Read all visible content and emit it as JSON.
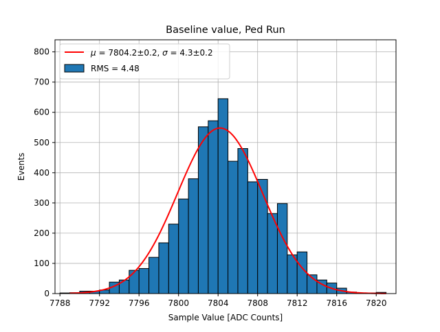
{
  "chart_data": {
    "type": "bar",
    "title": "Baseline value, Ped Run",
    "xlabel": "Sample Value [ADC Counts]",
    "ylabel": "Events",
    "xlim": [
      7787.5,
      7822.0
    ],
    "ylim": [
      0,
      840
    ],
    "x_ticks": [
      7788,
      7792,
      7796,
      7800,
      7804,
      7808,
      7812,
      7816,
      7820
    ],
    "y_ticks": [
      0,
      100,
      200,
      300,
      400,
      500,
      600,
      700,
      800
    ],
    "grid": true,
    "legend_position": "upper-left",
    "bin_width": 1,
    "bins": [
      {
        "x": 7788.5,
        "count": 2
      },
      {
        "x": 7789.5,
        "count": 3
      },
      {
        "x": 7790.5,
        "count": 8
      },
      {
        "x": 7791.5,
        "count": 8
      },
      {
        "x": 7792.5,
        "count": 12
      },
      {
        "x": 7793.5,
        "count": 38
      },
      {
        "x": 7794.5,
        "count": 45
      },
      {
        "x": 7795.5,
        "count": 77
      },
      {
        "x": 7796.5,
        "count": 83
      },
      {
        "x": 7797.5,
        "count": 120
      },
      {
        "x": 7798.5,
        "count": 168
      },
      {
        "x": 7799.5,
        "count": 230
      },
      {
        "x": 7800.5,
        "count": 313
      },
      {
        "x": 7801.5,
        "count": 380
      },
      {
        "x": 7802.5,
        "count": 552
      },
      {
        "x": 7803.5,
        "count": 572
      },
      {
        "x": 7804.5,
        "count": 645
      },
      {
        "x": 7805.5,
        "count": 438
      },
      {
        "x": 7806.5,
        "count": 480
      },
      {
        "x": 7807.5,
        "count": 370
      },
      {
        "x": 7808.5,
        "count": 378
      },
      {
        "x": 7809.5,
        "count": 265
      },
      {
        "x": 7810.5,
        "count": 298
      },
      {
        "x": 7811.5,
        "count": 128
      },
      {
        "x": 7812.5,
        "count": 138
      },
      {
        "x": 7813.5,
        "count": 62
      },
      {
        "x": 7814.5,
        "count": 45
      },
      {
        "x": 7815.5,
        "count": 35
      },
      {
        "x": 7816.5,
        "count": 18
      },
      {
        "x": 7817.5,
        "count": 5
      },
      {
        "x": 7818.5,
        "count": 2
      },
      {
        "x": 7819.5,
        "count": 2
      },
      {
        "x": 7820.5,
        "count": 4
      }
    ],
    "fit": {
      "mu": 7804.2,
      "sigma": 4.3,
      "amplitude": 548,
      "x_range": [
        7789.0,
        7821.0
      ]
    },
    "series": [
      {
        "name": "$\\mu = 7804.2\\pm0.2$, $\\sigma = 4.3\\pm0.2$",
        "type": "line",
        "color": "#ff0000"
      },
      {
        "name": "RMS = 4.48",
        "type": "bar",
        "color": "#1f77b4"
      }
    ],
    "legend": {
      "fit_label_parts": {
        "mu_symbol": "μ",
        "mu_value": " = 7804.2±0.2, ",
        "sigma_symbol": "σ",
        "sigma_value": " = 4.3±0.2"
      },
      "hist_label": "RMS = 4.48"
    },
    "colors": {
      "bar_fill": "#1f77b4",
      "bar_edge": "#000000",
      "fit_line": "#ff0000",
      "grid": "#b0b0b0"
    }
  }
}
